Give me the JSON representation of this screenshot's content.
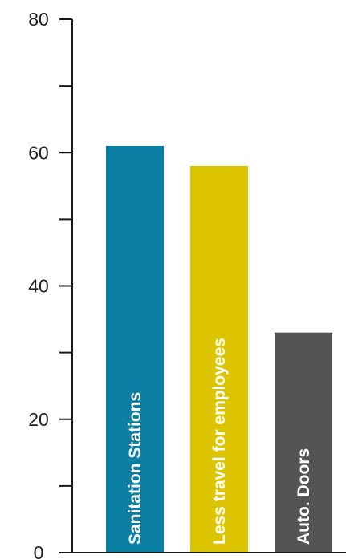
{
  "chart_data": {
    "type": "bar",
    "title": "",
    "xlabel": "",
    "ylabel": "",
    "ylim": [
      0,
      80
    ],
    "yticks": [
      0,
      20,
      40,
      60,
      80
    ],
    "grid": false,
    "legend": "none",
    "categories": [
      "Sanitation Stations",
      "Less travel for employees",
      "Auto. Doors"
    ],
    "values": [
      61,
      58,
      33
    ],
    "colors": [
      "#0a7fa3",
      "#dcc400",
      "#555453"
    ]
  }
}
